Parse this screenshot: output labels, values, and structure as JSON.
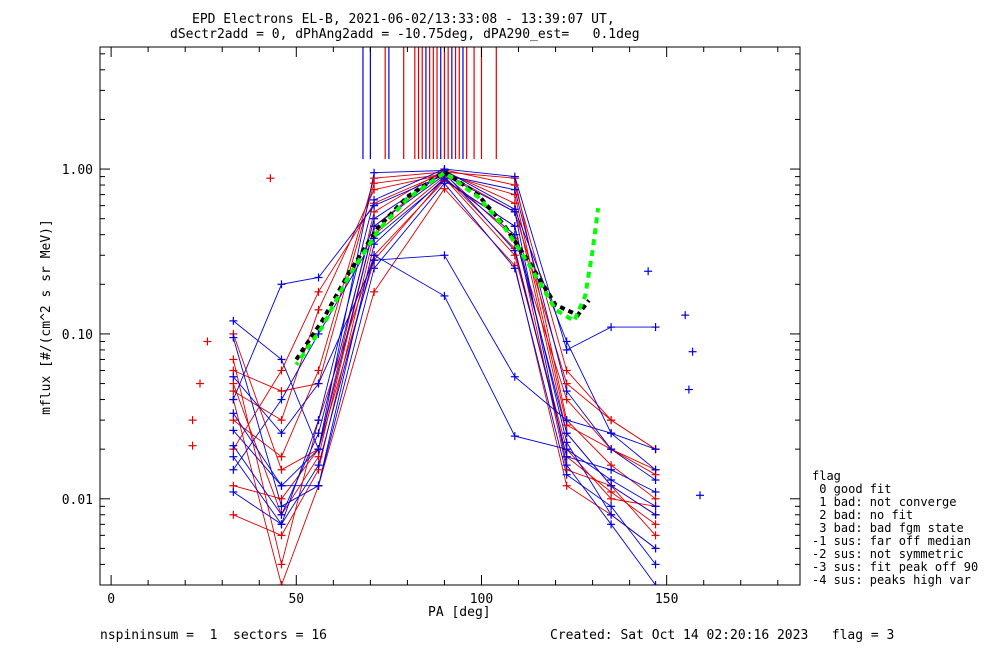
{
  "title_line1": "EPD Electrons EL-B, 2021-06-02/13:33:08 - 13:39:07 UT,",
  "title_line2": "dSectr2add = 0, dPhAng2add = -10.75deg, dPA290_est=   0.1deg",
  "footer_left": "nspininsum =  1  sectors = 16",
  "footer_right": "Created: Sat Oct 14 02:20:16 2023   flag = 3",
  "legend": {
    "title": "flag",
    "items": [
      " 0 good fit",
      " 1 bad: not converge",
      " 2 bad: no fit",
      " 3 bad: bad fgm state",
      "-1 sus: far off median",
      "-2 sus: not symmetric",
      "-3 sus: fit peak off 90",
      "-4 sus: peaks high var"
    ]
  },
  "colors": {
    "red": "#e00000",
    "blue": "#0000e0",
    "green": "#00ff00",
    "black": "#000000"
  },
  "chart_data": {
    "type": "line",
    "xlabel": "PA [deg]",
    "ylabel": "mflux [#/(cm^2 s sr MeV)]",
    "xlim": [
      -3,
      186
    ],
    "ylim": [
      0.003,
      5.5
    ],
    "yscale": "log",
    "x_ticks": [
      0,
      50,
      100,
      150
    ],
    "y_ticks": [
      0.01,
      0.1,
      1.0
    ],
    "y_tick_labels": [
      "0.01",
      "0.10",
      "1.00"
    ],
    "pa_bins": [
      33,
      46,
      56,
      71,
      90,
      109,
      123,
      135,
      147
    ],
    "series": [
      {
        "color": "red",
        "values": [
          0.02,
          0.06,
          0.18,
          0.62,
          0.95,
          0.55,
          0.05,
          0.03,
          0.02
        ]
      },
      {
        "color": "red",
        "values": [
          0.045,
          0.03,
          0.14,
          0.75,
          0.93,
          0.38,
          0.04,
          0.02,
          0.015
        ]
      },
      {
        "color": "red",
        "values": [
          0.1,
          0.015,
          0.02,
          0.28,
          0.88,
          0.3,
          0.02,
          0.01,
          0.009
        ]
      },
      {
        "color": "red",
        "values": [
          0.05,
          0.008,
          0.018,
          0.45,
          0.97,
          0.62,
          0.025,
          0.012,
          0.008
        ]
      },
      {
        "color": "red",
        "values": [
          0.07,
          0.004,
          0.03,
          0.3,
          0.85,
          0.45,
          0.015,
          0.012,
          0.006
        ]
      },
      {
        "color": "red",
        "values": [
          0.04,
          0.003,
          0.012,
          0.18,
          0.76,
          0.26,
          0.012,
          0.008,
          0.005
        ]
      },
      {
        "color": "red",
        "values": [
          0.012,
          0.01,
          0.02,
          0.55,
          0.99,
          0.8,
          0.06,
          0.03,
          0.02
        ]
      },
      {
        "color": "red",
        "values": [
          0.06,
          0.045,
          0.05,
          0.82,
          0.93,
          0.7,
          0.028,
          0.02,
          0.014
        ]
      },
      {
        "color": "red",
        "values": [
          0.03,
          0.018,
          0.06,
          0.88,
          0.96,
          0.88,
          0.03,
          0.016,
          0.01
        ]
      },
      {
        "color": "red",
        "values": [
          0.008,
          0.006,
          0.015,
          0.4,
          0.9,
          0.33,
          0.018,
          0.011,
          0.007
        ]
      },
      {
        "color": "blue",
        "values": [
          0.12,
          0.07,
          0.02,
          0.95,
          0.98,
          0.57,
          0.09,
          0.025,
          0.015
        ]
      },
      {
        "color": "blue",
        "values": [
          0.033,
          0.012,
          0.012,
          0.35,
          0.88,
          0.4,
          0.025,
          0.012,
          0.008
        ]
      },
      {
        "color": "blue",
        "values": [
          0.021,
          0.008,
          0.025,
          0.5,
          0.95,
          0.32,
          0.018,
          0.015,
          0.011
        ]
      },
      {
        "color": "blue",
        "values": [
          0.055,
          0.025,
          0.05,
          0.28,
          0.3,
          0.055,
          0.03,
          0.025,
          0.02
        ]
      },
      {
        "color": "blue",
        "values": [
          0.011,
          0.007,
          0.016,
          0.3,
          0.17,
          0.024,
          0.02,
          0.013,
          0.009
        ]
      },
      {
        "color": "blue",
        "values": [
          0.04,
          0.2,
          0.22,
          0.6,
          0.92,
          0.75,
          0.045,
          0.02,
          0.013
        ]
      },
      {
        "color": "blue",
        "values": [
          0.015,
          0.04,
          0.1,
          0.38,
          0.86,
          0.45,
          0.022,
          0.008,
          0.005
        ]
      },
      {
        "color": "blue",
        "values": [
          0.026,
          0.012,
          0.02,
          0.45,
          0.92,
          0.55,
          0.016,
          0.007,
          0.003
        ]
      },
      {
        "color": "blue",
        "values": [
          0.095,
          0.009,
          0.012,
          0.25,
          0.82,
          0.25,
          0.014,
          0.009,
          0.004
        ]
      },
      {
        "color": "blue",
        "values": [
          0.018,
          0.007,
          0.03,
          0.65,
          1.0,
          0.9,
          0.08,
          0.11,
          0.11
        ]
      }
    ],
    "fit_curve": {
      "color": "green",
      "x": [
        50,
        57,
        64,
        72,
        80,
        90,
        99,
        106,
        113,
        120,
        125,
        128,
        130,
        131.5
      ],
      "y": [
        0.065,
        0.11,
        0.22,
        0.42,
        0.66,
        0.95,
        0.68,
        0.45,
        0.26,
        0.14,
        0.12,
        0.17,
        0.32,
        0.58
      ]
    },
    "median_curve": {
      "color": "black",
      "x": [
        50,
        57,
        64,
        72,
        80,
        90,
        99,
        106,
        113,
        120,
        126,
        129
      ],
      "y": [
        0.07,
        0.12,
        0.23,
        0.44,
        0.68,
        0.96,
        0.7,
        0.46,
        0.27,
        0.15,
        0.13,
        0.16
      ]
    },
    "scattered_points": [
      {
        "color": "blue",
        "x": 145,
        "y": 0.24
      },
      {
        "color": "blue",
        "x": 155,
        "y": 0.13
      },
      {
        "color": "blue",
        "x": 157,
        "y": 0.078
      },
      {
        "color": "blue",
        "x": 156,
        "y": 0.046
      },
      {
        "color": "blue",
        "x": 159,
        "y": 0.0105
      },
      {
        "color": "red",
        "x": 43,
        "y": 0.88
      },
      {
        "color": "red",
        "x": 26,
        "y": 0.09
      },
      {
        "color": "red",
        "x": 24,
        "y": 0.05
      },
      {
        "color": "red",
        "x": 22,
        "y": 0.03
      },
      {
        "color": "red",
        "x": 22,
        "y": 0.021
      }
    ],
    "vertical_markers": [
      {
        "color": "blue",
        "x": 68
      },
      {
        "color": "blue",
        "x": 70
      },
      {
        "color": "red",
        "x": 74
      },
      {
        "color": "blue",
        "x": 75
      },
      {
        "color": "red",
        "x": 79
      },
      {
        "color": "red",
        "x": 82
      },
      {
        "color": "red",
        "x": 83
      },
      {
        "color": "red",
        "x": 84
      },
      {
        "color": "blue",
        "x": 85
      },
      {
        "color": "red",
        "x": 86
      },
      {
        "color": "red",
        "x": 87
      },
      {
        "color": "red",
        "x": 88
      },
      {
        "color": "blue",
        "x": 89
      },
      {
        "color": "red",
        "x": 90
      },
      {
        "color": "red",
        "x": 91
      },
      {
        "color": "blue",
        "x": 92
      },
      {
        "color": "red",
        "x": 93
      },
      {
        "color": "red",
        "x": 94
      },
      {
        "color": "blue",
        "x": 95
      },
      {
        "color": "red",
        "x": 96
      },
      {
        "color": "red",
        "x": 98
      },
      {
        "color": "red",
        "x": 100
      },
      {
        "color": "red",
        "x": 104
      }
    ],
    "vertical_marker_range": [
      1.15,
      5.5
    ]
  }
}
